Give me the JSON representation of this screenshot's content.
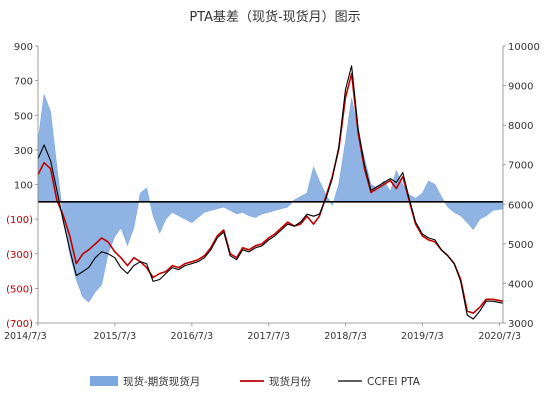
{
  "chart_data": {
    "type": "area",
    "title": "PTA基差（现货-现货月）图示",
    "x_ticks": [
      "2014/7/3",
      "2015/7/3",
      "2016/7/3",
      "2017/7/3",
      "2018/7/3",
      "2019/7/3",
      "2020/7/3"
    ],
    "x_range": [
      "2014/7/3",
      "2020/7/20"
    ],
    "y_left": {
      "range": [
        -700,
        900
      ],
      "ticks": [
        900,
        700,
        500,
        300,
        100,
        -100,
        -300,
        -500,
        -700
      ],
      "tick_labels": [
        "900",
        "700",
        "500",
        "300",
        "100",
        "(100)",
        "(300)",
        "(500)",
        "(700)"
      ]
    },
    "y_right": {
      "range": [
        3000,
        10000
      ],
      "ticks": [
        10000,
        9000,
        8000,
        7000,
        6000,
        5000,
        4000,
        3000
      ],
      "tick_labels": [
        "10000",
        "9000",
        "8000",
        "7000",
        "6000",
        "5000",
        "4000",
        "3000"
      ]
    },
    "reference_line": {
      "axis": "left",
      "value": 0
    },
    "legend_position": "bottom",
    "series": [
      {
        "name": "现货-期货现货月",
        "type": "area",
        "axis": "left",
        "color": "#7ba7de",
        "points": [
          [
            "2014/7/3",
            350
          ],
          [
            "2014/8/1",
            620
          ],
          [
            "2014/9/1",
            520
          ],
          [
            "2014/10/1",
            200
          ],
          [
            "2014/11/1",
            -100
          ],
          [
            "2014/12/1",
            -300
          ],
          [
            "2015/1/1",
            -450
          ],
          [
            "2015/2/1",
            -550
          ],
          [
            "2015/3/1",
            -580
          ],
          [
            "2015/4/1",
            -520
          ],
          [
            "2015/5/1",
            -480
          ],
          [
            "2015/6/1",
            -300
          ],
          [
            "2015/7/3",
            -200
          ],
          [
            "2015/8/1",
            -150
          ],
          [
            "2015/9/1",
            -250
          ],
          [
            "2015/10/1",
            -150
          ],
          [
            "2015/11/1",
            50
          ],
          [
            "2015/12/1",
            80
          ],
          [
            "2016/1/1",
            -80
          ],
          [
            "2016/2/1",
            -180
          ],
          [
            "2016/3/1",
            -100
          ],
          [
            "2016/4/1",
            -60
          ],
          [
            "2016/5/1",
            -80
          ],
          [
            "2016/6/1",
            -100
          ],
          [
            "2016/7/3",
            -120
          ],
          [
            "2016/8/1",
            -90
          ],
          [
            "2016/9/1",
            -60
          ],
          [
            "2016/10/1",
            -50
          ],
          [
            "2016/11/1",
            -40
          ],
          [
            "2016/12/1",
            -30
          ],
          [
            "2017/1/1",
            -50
          ],
          [
            "2017/2/1",
            -70
          ],
          [
            "2017/3/1",
            -60
          ],
          [
            "2017/4/1",
            -80
          ],
          [
            "2017/5/1",
            -90
          ],
          [
            "2017/6/1",
            -70
          ],
          [
            "2017/7/3",
            -60
          ],
          [
            "2017/8/1",
            -50
          ],
          [
            "2017/9/1",
            -40
          ],
          [
            "2017/10/1",
            -30
          ],
          [
            "2017/11/1",
            10
          ],
          [
            "2017/12/1",
            30
          ],
          [
            "2018/1/1",
            50
          ],
          [
            "2018/2/1",
            200
          ],
          [
            "2018/3/1",
            120
          ],
          [
            "2018/4/1",
            40
          ],
          [
            "2018/5/1",
            -20
          ],
          [
            "2018/6/1",
            100
          ],
          [
            "2018/7/3",
            350
          ],
          [
            "2018/8/1",
            600
          ],
          [
            "2018/9/1",
            400
          ],
          [
            "2018/10/1",
            250
          ],
          [
            "2018/11/1",
            100
          ],
          [
            "2018/12/1",
            80
          ],
          [
            "2019/1/1",
            120
          ],
          [
            "2019/2/1",
            60
          ],
          [
            "2019/3/1",
            180
          ],
          [
            "2019/4/1",
            100
          ],
          [
            "2019/5/1",
            40
          ],
          [
            "2019/6/1",
            20
          ],
          [
            "2019/7/3",
            50
          ],
          [
            "2019/8/1",
            120
          ],
          [
            "2019/9/1",
            100
          ],
          [
            "2019/10/1",
            30
          ],
          [
            "2019/11/1",
            -30
          ],
          [
            "2019/12/1",
            -60
          ],
          [
            "2020/1/1",
            -80
          ],
          [
            "2020/2/1",
            -120
          ],
          [
            "2020/3/1",
            -160
          ],
          [
            "2020/4/1",
            -100
          ],
          [
            "2020/5/1",
            -80
          ],
          [
            "2020/6/1",
            -50
          ],
          [
            "2020/7/20",
            -40
          ]
        ]
      },
      {
        "name": "现货月份",
        "type": "line",
        "axis": "right",
        "color": "#c00000",
        "points": [
          [
            "2014/7/3",
            6750
          ],
          [
            "2014/8/1",
            7050
          ],
          [
            "2014/9/1",
            6900
          ],
          [
            "2014/10/1",
            6100
          ],
          [
            "2014/11/1",
            5700
          ],
          [
            "2014/12/1",
            5200
          ],
          [
            "2015/1/1",
            4500
          ],
          [
            "2015/2/1",
            4750
          ],
          [
            "2015/3/1",
            4850
          ],
          [
            "2015/4/1",
            5000
          ],
          [
            "2015/5/1",
            5150
          ],
          [
            "2015/6/1",
            5050
          ],
          [
            "2015/7/3",
            4800
          ],
          [
            "2015/8/1",
            4650
          ],
          [
            "2015/9/1",
            4450
          ],
          [
            "2015/10/1",
            4650
          ],
          [
            "2015/11/1",
            4550
          ],
          [
            "2015/12/1",
            4400
          ],
          [
            "2016/1/1",
            4150
          ],
          [
            "2016/2/1",
            4250
          ],
          [
            "2016/3/1",
            4300
          ],
          [
            "2016/4/1",
            4450
          ],
          [
            "2016/5/1",
            4400
          ],
          [
            "2016/6/1",
            4500
          ],
          [
            "2016/7/3",
            4550
          ],
          [
            "2016/8/1",
            4600
          ],
          [
            "2016/9/1",
            4700
          ],
          [
            "2016/10/1",
            4900
          ],
          [
            "2016/11/1",
            5200
          ],
          [
            "2016/12/1",
            5350
          ],
          [
            "2017/1/1",
            4750
          ],
          [
            "2017/2/1",
            4650
          ],
          [
            "2017/3/1",
            4900
          ],
          [
            "2017/4/1",
            4850
          ],
          [
            "2017/5/1",
            4950
          ],
          [
            "2017/6/1",
            5000
          ],
          [
            "2017/7/3",
            5150
          ],
          [
            "2017/8/1",
            5250
          ],
          [
            "2017/9/1",
            5400
          ],
          [
            "2017/10/1",
            5550
          ],
          [
            "2017/11/1",
            5450
          ],
          [
            "2017/12/1",
            5500
          ],
          [
            "2018/1/1",
            5700
          ],
          [
            "2018/2/1",
            5500
          ],
          [
            "2018/3/1",
            5700
          ],
          [
            "2018/4/1",
            6200
          ],
          [
            "2018/5/1",
            6700
          ],
          [
            "2018/6/1",
            7400
          ],
          [
            "2018/7/3",
            8700
          ],
          [
            "2018/8/1",
            9300
          ],
          [
            "2018/9/1",
            7800
          ],
          [
            "2018/10/1",
            6900
          ],
          [
            "2018/11/1",
            6300
          ],
          [
            "2018/12/1",
            6400
          ],
          [
            "2019/1/1",
            6500
          ],
          [
            "2019/2/1",
            6600
          ],
          [
            "2019/3/1",
            6400
          ],
          [
            "2019/4/1",
            6700
          ],
          [
            "2019/5/1",
            6100
          ],
          [
            "2019/6/1",
            5500
          ],
          [
            "2019/7/3",
            5200
          ],
          [
            "2019/8/1",
            5100
          ],
          [
            "2019/9/1",
            5050
          ],
          [
            "2019/10/1",
            4850
          ],
          [
            "2019/11/1",
            4700
          ],
          [
            "2019/12/1",
            4500
          ],
          [
            "2020/1/1",
            4100
          ],
          [
            "2020/2/1",
            3300
          ],
          [
            "2020/3/1",
            3250
          ],
          [
            "2020/4/1",
            3400
          ],
          [
            "2020/5/1",
            3600
          ],
          [
            "2020/6/1",
            3600
          ],
          [
            "2020/7/20",
            3550
          ]
        ]
      },
      {
        "name": "CCFEI PTA",
        "type": "line",
        "axis": "right",
        "color": "#000000",
        "points": [
          [
            "2014/7/3",
            7150
          ],
          [
            "2014/8/1",
            7500
          ],
          [
            "2014/9/1",
            7100
          ],
          [
            "2014/10/1",
            6350
          ],
          [
            "2014/11/1",
            5550
          ],
          [
            "2014/12/1",
            4850
          ],
          [
            "2015/1/1",
            4200
          ],
          [
            "2015/2/1",
            4300
          ],
          [
            "2015/3/1",
            4400
          ],
          [
            "2015/4/1",
            4650
          ],
          [
            "2015/5/1",
            4800
          ],
          [
            "2015/6/1",
            4750
          ],
          [
            "2015/7/3",
            4650
          ],
          [
            "2015/8/1",
            4400
          ],
          [
            "2015/9/1",
            4250
          ],
          [
            "2015/10/1",
            4450
          ],
          [
            "2015/11/1",
            4550
          ],
          [
            "2015/12/1",
            4500
          ],
          [
            "2016/1/1",
            4050
          ],
          [
            "2016/2/1",
            4100
          ],
          [
            "2016/3/1",
            4250
          ],
          [
            "2016/4/1",
            4400
          ],
          [
            "2016/5/1",
            4350
          ],
          [
            "2016/6/1",
            4450
          ],
          [
            "2016/7/3",
            4500
          ],
          [
            "2016/8/1",
            4550
          ],
          [
            "2016/9/1",
            4650
          ],
          [
            "2016/10/1",
            4850
          ],
          [
            "2016/11/1",
            5150
          ],
          [
            "2016/12/1",
            5300
          ],
          [
            "2017/1/1",
            4700
          ],
          [
            "2017/2/1",
            4600
          ],
          [
            "2017/3/1",
            4850
          ],
          [
            "2017/4/1",
            4800
          ],
          [
            "2017/5/1",
            4900
          ],
          [
            "2017/6/1",
            4950
          ],
          [
            "2017/7/3",
            5100
          ],
          [
            "2017/8/1",
            5200
          ],
          [
            "2017/9/1",
            5350
          ],
          [
            "2017/10/1",
            5500
          ],
          [
            "2017/11/1",
            5450
          ],
          [
            "2017/12/1",
            5550
          ],
          [
            "2018/1/1",
            5750
          ],
          [
            "2018/2/1",
            5700
          ],
          [
            "2018/3/1",
            5750
          ],
          [
            "2018/4/1",
            6150
          ],
          [
            "2018/5/1",
            6650
          ],
          [
            "2018/6/1",
            7450
          ],
          [
            "2018/7/3",
            8900
          ],
          [
            "2018/8/1",
            9500
          ],
          [
            "2018/9/1",
            7900
          ],
          [
            "2018/10/1",
            7000
          ],
          [
            "2018/11/1",
            6350
          ],
          [
            "2018/12/1",
            6450
          ],
          [
            "2019/1/1",
            6550
          ],
          [
            "2019/2/1",
            6650
          ],
          [
            "2019/3/1",
            6550
          ],
          [
            "2019/4/1",
            6800
          ],
          [
            "2019/5/1",
            6150
          ],
          [
            "2019/6/1",
            5550
          ],
          [
            "2019/7/3",
            5250
          ],
          [
            "2019/8/1",
            5150
          ],
          [
            "2019/9/1",
            5100
          ],
          [
            "2019/10/1",
            4850
          ],
          [
            "2019/11/1",
            4700
          ],
          [
            "2019/12/1",
            4500
          ],
          [
            "2020/1/1",
            4050
          ],
          [
            "2020/2/1",
            3200
          ],
          [
            "2020/3/1",
            3100
          ],
          [
            "2020/4/1",
            3300
          ],
          [
            "2020/5/1",
            3550
          ],
          [
            "2020/6/1",
            3550
          ],
          [
            "2020/7/20",
            3500
          ]
        ]
      }
    ]
  }
}
